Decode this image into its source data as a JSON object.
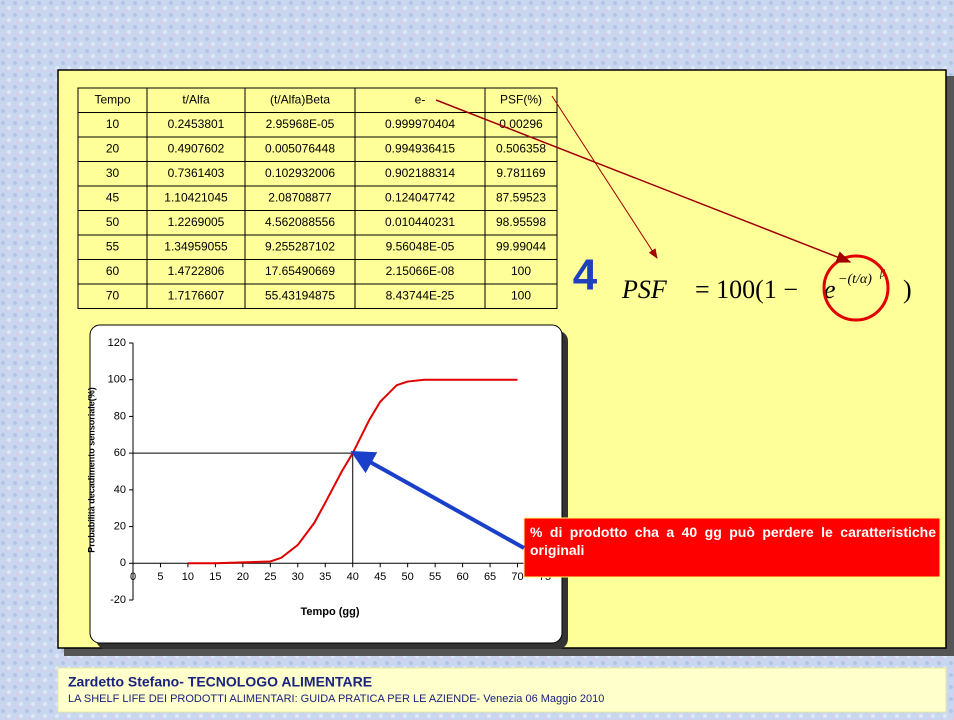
{
  "table": {
    "header": [
      "Tempo",
      "t/Alfa",
      "(t/Alfa)Beta",
      "e-",
      "PSF(%)"
    ],
    "rows": [
      [
        "10",
        "0.2453801",
        "2.95968E-05",
        "0.999970404",
        "0.00296"
      ],
      [
        "20",
        "0.4907602",
        "0.005076448",
        "0.994936415",
        "0.506358"
      ],
      [
        "30",
        "0.7361403",
        "0.102932006",
        "0.902188314",
        "9.781169"
      ],
      [
        "45",
        "1.10421045",
        "2.08708877",
        "0.124047742",
        "87.59523"
      ],
      [
        "50",
        "1.2269005",
        "4.562088556",
        "0.010440231",
        "98.95598"
      ],
      [
        "55",
        "1.34959055",
        "9.255287102",
        "9.56048E-05",
        "99.99044"
      ],
      [
        "60",
        "1.4722806",
        "17.65490669",
        "2.15066E-08",
        "100"
      ],
      [
        "70",
        "1.7176607",
        "55.43194875",
        "8.43744E-25",
        "100"
      ]
    ]
  },
  "step_number": "4",
  "formula": {
    "lhs": "PSF",
    "mid": "= 100(1 −",
    "base": "e",
    "exp": "−(t/α)",
    "exp_power": "β",
    "close": ")"
  },
  "callout": "% di prodotto cha a 40 gg può perdere le caratteristiche originali",
  "footer": {
    "title": "Zardetto Stefano- TECNOLOGO ALIMENTARE",
    "subtitle": "LA SHELF LIFE DEI PRODOTTI ALIMENTARI: GUIDA PRATICA PER LE AZIENDE- Venezia 06 Maggio 2010"
  },
  "chart_data": {
    "type": "line",
    "x_label": "Tempo (gg)",
    "y_label": "Probabilità decadimento sensoriale(%)",
    "x": [
      10,
      15,
      20,
      25,
      27,
      30,
      33,
      35,
      38,
      40,
      43,
      45,
      48,
      50,
      53,
      55,
      60,
      65,
      70
    ],
    "values": [
      0,
      0,
      0.5,
      1,
      3,
      10,
      22,
      33,
      50,
      60,
      78,
      88,
      97,
      99,
      100,
      100,
      100,
      100,
      100
    ],
    "color": "#e00000",
    "xlim": [
      0,
      75
    ],
    "ylim": [
      -20,
      120
    ],
    "xticks": [
      0,
      5,
      10,
      15,
      20,
      25,
      30,
      35,
      40,
      45,
      50,
      55,
      60,
      65,
      70,
      75
    ],
    "yticks": [
      -20,
      0,
      20,
      40,
      60,
      80,
      100,
      120
    ],
    "guide": {
      "x": 40,
      "y": 60
    }
  }
}
